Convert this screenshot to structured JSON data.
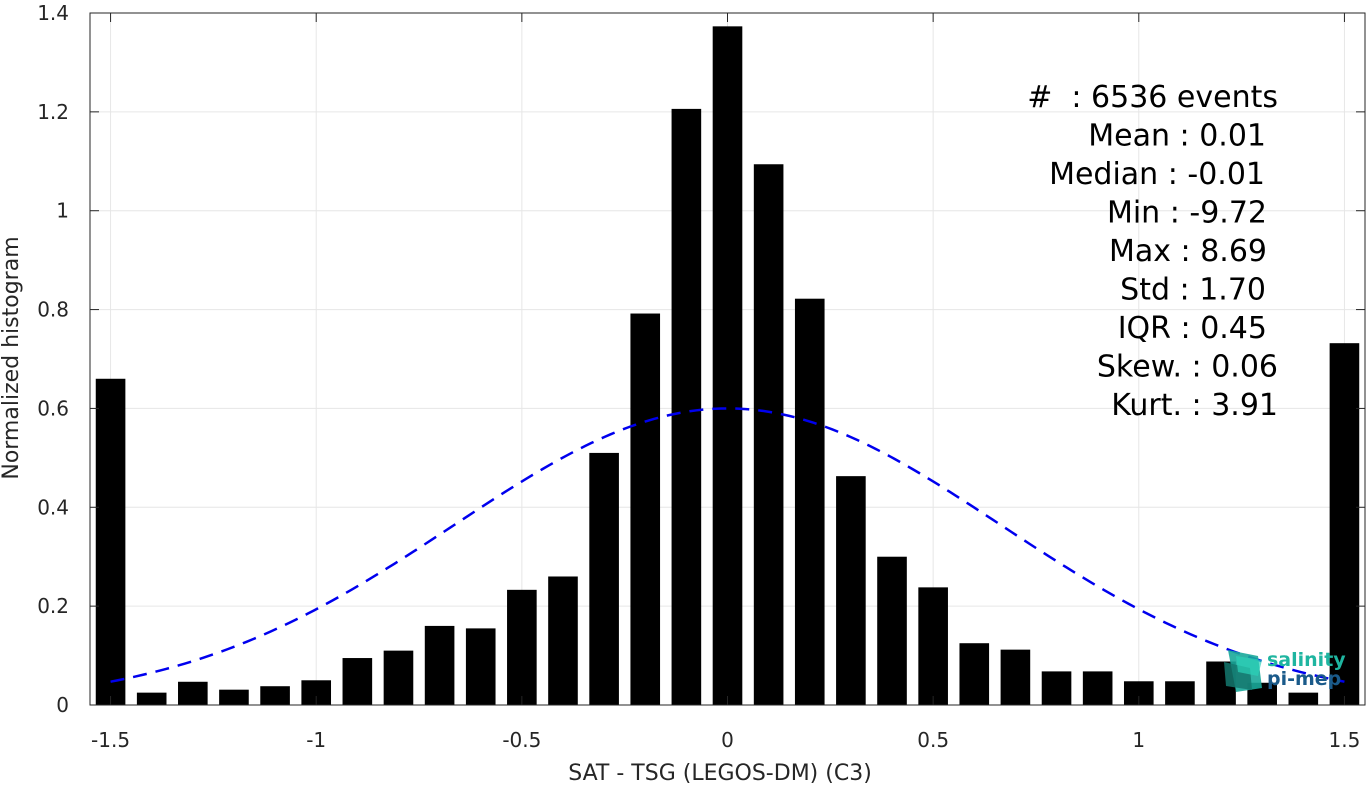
{
  "chart_data": {
    "type": "bar",
    "xlabel": "SAT - TSG (LEGOS-DM) (C3)",
    "ylabel": "Normalized histogram",
    "xlim": [
      -1.55,
      1.55
    ],
    "ylim": [
      0,
      1.4
    ],
    "xticks": [
      -1.5,
      -1,
      -0.5,
      0,
      0.5,
      1,
      1.5
    ],
    "xtick_labels": [
      "-1.5",
      "-1",
      "-0.5",
      "0",
      "0.5",
      "1",
      "1.5"
    ],
    "yticks": [
      0,
      0.2,
      0.4,
      0.6,
      0.8,
      1,
      1.2,
      1.4
    ],
    "ytick_labels": [
      "0",
      "0.2",
      "0.4",
      "0.6",
      "0.8",
      "1",
      "1.2",
      "1.4"
    ],
    "grid": true,
    "bar_color": "#000000",
    "bin_width": 0.1,
    "x": [
      -1.5,
      -1.4,
      -1.3,
      -1.2,
      -1.1,
      -1.0,
      -0.9,
      -0.8,
      -0.7,
      -0.6,
      -0.5,
      -0.4,
      -0.3,
      -0.2,
      -0.1,
      0.0,
      0.1,
      0.2,
      0.3,
      0.4,
      0.5,
      0.6,
      0.7,
      0.8,
      0.9,
      1.0,
      1.1,
      1.2,
      1.3,
      1.4,
      1.5
    ],
    "values": [
      0.66,
      0.025,
      0.047,
      0.031,
      0.038,
      0.05,
      0.095,
      0.11,
      0.16,
      0.155,
      0.233,
      0.26,
      0.51,
      0.792,
      1.206,
      1.373,
      1.094,
      0.822,
      0.463,
      0.3,
      0.238,
      0.125,
      0.112,
      0.068,
      0.068,
      0.048,
      0.048,
      0.088,
      0.045,
      0.025,
      0.732
    ],
    "fit": {
      "type": "gaussian",
      "color": "#0000ee",
      "style": "dashed",
      "x_range": [
        -1.5,
        1.5
      ],
      "peak": 0.6,
      "mean": 0.0,
      "sigma": 0.665
    },
    "stats": [
      "#  : 6536 events",
      "Mean : 0.01",
      "Median : -0.01",
      "Min : -9.72",
      "Max : 8.69",
      "Std : 1.70",
      "IQR : 0.45",
      "Skew. : 0.06",
      "Kurt. : 3.91"
    ]
  },
  "logo": {
    "line1": "salinity",
    "line2": "pi-mep",
    "color_text1": "#1fb5a0",
    "color_text2": "#1a5a8a"
  }
}
